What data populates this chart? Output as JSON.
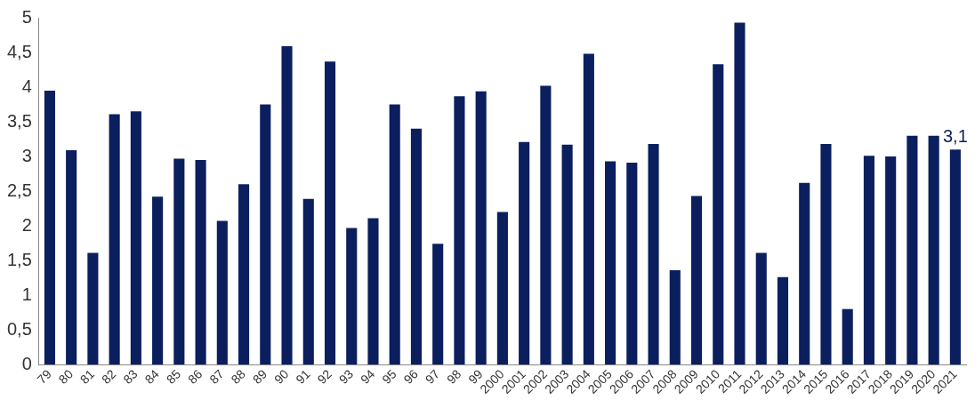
{
  "chart_data": {
    "type": "bar",
    "categories": [
      "79",
      "80",
      "81",
      "82",
      "83",
      "84",
      "85",
      "86",
      "87",
      "88",
      "89",
      "90",
      "91",
      "92",
      "93",
      "94",
      "95",
      "96",
      "97",
      "98",
      "99",
      "2000",
      "2001",
      "2002",
      "2003",
      "2004",
      "2005",
      "2006",
      "2007",
      "2008",
      "2009",
      "2010",
      "2011",
      "2012",
      "2013",
      "2014",
      "2015",
      "2016",
      "2017",
      "2018",
      "2019",
      "2020",
      "2021"
    ],
    "values": [
      3.95,
      3.09,
      1.61,
      3.61,
      3.65,
      2.42,
      2.97,
      2.95,
      2.07,
      2.6,
      3.75,
      4.59,
      2.39,
      4.37,
      1.97,
      2.11,
      3.75,
      3.4,
      1.74,
      3.87,
      3.94,
      2.2,
      3.21,
      4.02,
      3.17,
      4.48,
      2.93,
      2.91,
      3.18,
      1.36,
      2.43,
      4.33,
      4.93,
      1.61,
      1.26,
      2.62,
      3.18,
      0.8,
      3.01,
      3.0,
      3.3,
      3.3,
      3.1
    ],
    "value_labels": [
      null,
      null,
      null,
      null,
      null,
      null,
      null,
      null,
      null,
      null,
      null,
      null,
      null,
      null,
      null,
      null,
      null,
      null,
      null,
      null,
      null,
      null,
      null,
      null,
      null,
      null,
      null,
      null,
      null,
      null,
      null,
      null,
      null,
      null,
      null,
      null,
      null,
      null,
      null,
      null,
      null,
      null,
      "3,1"
    ],
    "color": "#0b1f5e",
    "ylim": [
      0,
      5
    ],
    "yticks": [
      0,
      {
        "value": 0.5,
        "label": "0,5"
      },
      1,
      {
        "value": 1.5,
        "label": "1,5"
      },
      2,
      {
        "value": 2.5,
        "label": "2,5"
      },
      3,
      {
        "value": 3.5,
        "label": "3,5"
      },
      4,
      {
        "value": 4.5,
        "label": "4,5"
      },
      5
    ],
    "grid": false,
    "legend": false
  }
}
